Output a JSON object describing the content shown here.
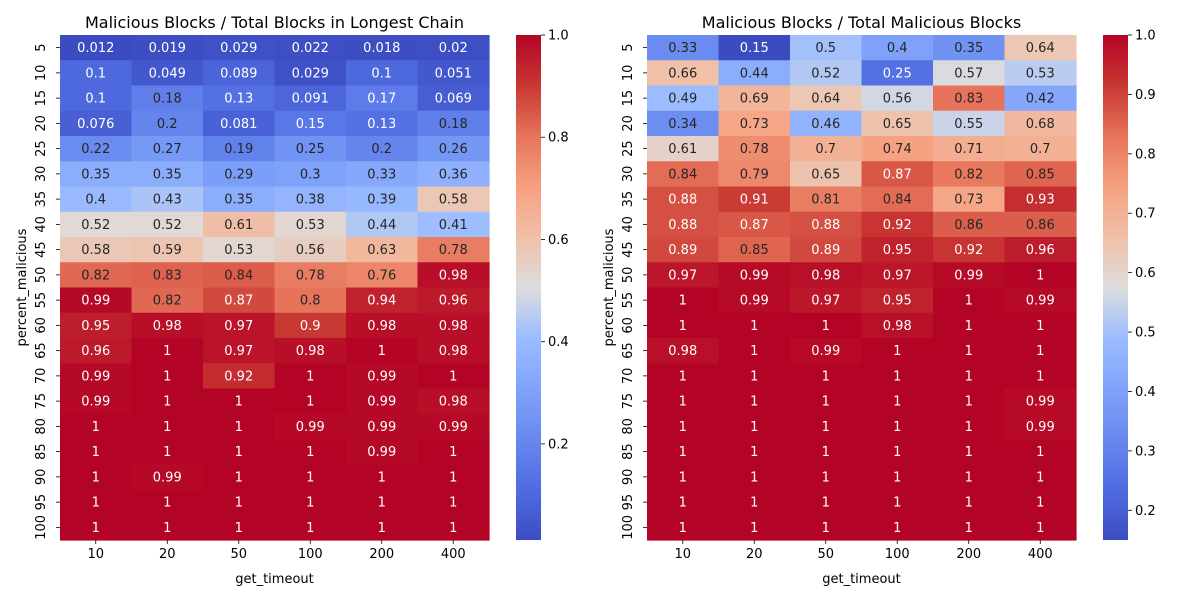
{
  "charts": [
    {
      "type": "heatmap",
      "title": "Malicious Blocks / Total Blocks in Longest Chain",
      "xlabel": "get_timeout",
      "ylabel": "percent_malicious",
      "x": [
        "10",
        "20",
        "50",
        "100",
        "200",
        "400"
      ],
      "y": [
        "5",
        "10",
        "15",
        "20",
        "25",
        "30",
        "35",
        "40",
        "45",
        "50",
        "55",
        "60",
        "65",
        "70",
        "75",
        "80",
        "85",
        "90",
        "95",
        "100"
      ],
      "values": [
        [
          0.012,
          0.019,
          0.029,
          0.022,
          0.018,
          0.02
        ],
        [
          0.1,
          0.049,
          0.089,
          0.029,
          0.1,
          0.051
        ],
        [
          0.1,
          0.18,
          0.13,
          0.091,
          0.17,
          0.069
        ],
        [
          0.076,
          0.2,
          0.081,
          0.15,
          0.13,
          0.18
        ],
        [
          0.22,
          0.27,
          0.19,
          0.25,
          0.2,
          0.26
        ],
        [
          0.35,
          0.35,
          0.29,
          0.3,
          0.33,
          0.36
        ],
        [
          0.4,
          0.43,
          0.35,
          0.38,
          0.39,
          0.58
        ],
        [
          0.52,
          0.52,
          0.61,
          0.53,
          0.44,
          0.41
        ],
        [
          0.58,
          0.59,
          0.53,
          0.56,
          0.63,
          0.78
        ],
        [
          0.82,
          0.83,
          0.84,
          0.78,
          0.76,
          0.98
        ],
        [
          0.99,
          0.82,
          0.87,
          0.8,
          0.94,
          0.96
        ],
        [
          0.95,
          0.98,
          0.97,
          0.9,
          0.98,
          0.98
        ],
        [
          0.96,
          1,
          0.97,
          0.98,
          1,
          0.98
        ],
        [
          0.99,
          1,
          0.92,
          1,
          0.99,
          1
        ],
        [
          0.99,
          1,
          1,
          1,
          0.99,
          0.98
        ],
        [
          1,
          1,
          1,
          0.99,
          0.99,
          0.99
        ],
        [
          1,
          1,
          1,
          1,
          0.99,
          1
        ],
        [
          1,
          0.99,
          1,
          1,
          1,
          1
        ],
        [
          1,
          1,
          1,
          1,
          1,
          1
        ],
        [
          1,
          1,
          1,
          1,
          1,
          1
        ]
      ],
      "vmin": 0.012,
      "vmax": 1.0,
      "colormap": "coolwarm",
      "colorbar_ticks": [
        0.2,
        0.4,
        0.6,
        0.8,
        1.0
      ],
      "colorbar_tick_labels": [
        "0.2",
        "0.4",
        "0.6",
        "0.8",
        "1.0"
      ]
    },
    {
      "type": "heatmap",
      "title": "Malicious Blocks / Total Malicious Blocks",
      "xlabel": "get_timeout",
      "ylabel": "percent_malicious",
      "x": [
        "10",
        "20",
        "50",
        "100",
        "200",
        "400"
      ],
      "y": [
        "5",
        "10",
        "15",
        "20",
        "25",
        "30",
        "35",
        "40",
        "45",
        "50",
        "55",
        "60",
        "65",
        "70",
        "75",
        "80",
        "85",
        "90",
        "95",
        "100"
      ],
      "values": [
        [
          0.33,
          0.15,
          0.5,
          0.4,
          0.35,
          0.64
        ],
        [
          0.66,
          0.44,
          0.52,
          0.25,
          0.57,
          0.53
        ],
        [
          0.49,
          0.69,
          0.64,
          0.56,
          0.83,
          0.42
        ],
        [
          0.34,
          0.73,
          0.46,
          0.65,
          0.55,
          0.68
        ],
        [
          0.61,
          0.78,
          0.7,
          0.74,
          0.71,
          0.7
        ],
        [
          0.84,
          0.79,
          0.65,
          0.87,
          0.82,
          0.85
        ],
        [
          0.88,
          0.91,
          0.81,
          0.84,
          0.73,
          0.93
        ],
        [
          0.88,
          0.87,
          0.88,
          0.92,
          0.86,
          0.86
        ],
        [
          0.89,
          0.85,
          0.89,
          0.95,
          0.92,
          0.96
        ],
        [
          0.97,
          0.99,
          0.98,
          0.97,
          0.99,
          1
        ],
        [
          1,
          0.99,
          0.97,
          0.95,
          1,
          0.99
        ],
        [
          1,
          1,
          1,
          0.98,
          1,
          1
        ],
        [
          0.98,
          1,
          0.99,
          1,
          1,
          1
        ],
        [
          1,
          1,
          1,
          1,
          1,
          1
        ],
        [
          1,
          1,
          1,
          1,
          1,
          0.99
        ],
        [
          1,
          1,
          1,
          1,
          1,
          0.99
        ],
        [
          1,
          1,
          1,
          1,
          1,
          1
        ],
        [
          1,
          1,
          1,
          1,
          1,
          1
        ],
        [
          1,
          1,
          1,
          1,
          1,
          1
        ],
        [
          1,
          1,
          1,
          1,
          1,
          1
        ]
      ],
      "vmin": 0.15,
      "vmax": 1.0,
      "colormap": "coolwarm",
      "colorbar_ticks": [
        0.2,
        0.3,
        0.4,
        0.5,
        0.6,
        0.7,
        0.8,
        0.9,
        1.0
      ],
      "colorbar_tick_labels": [
        "0.2",
        "0.3",
        "0.4",
        "0.5",
        "0.6",
        "0.7",
        "0.8",
        "0.9",
        "1.0"
      ]
    }
  ]
}
